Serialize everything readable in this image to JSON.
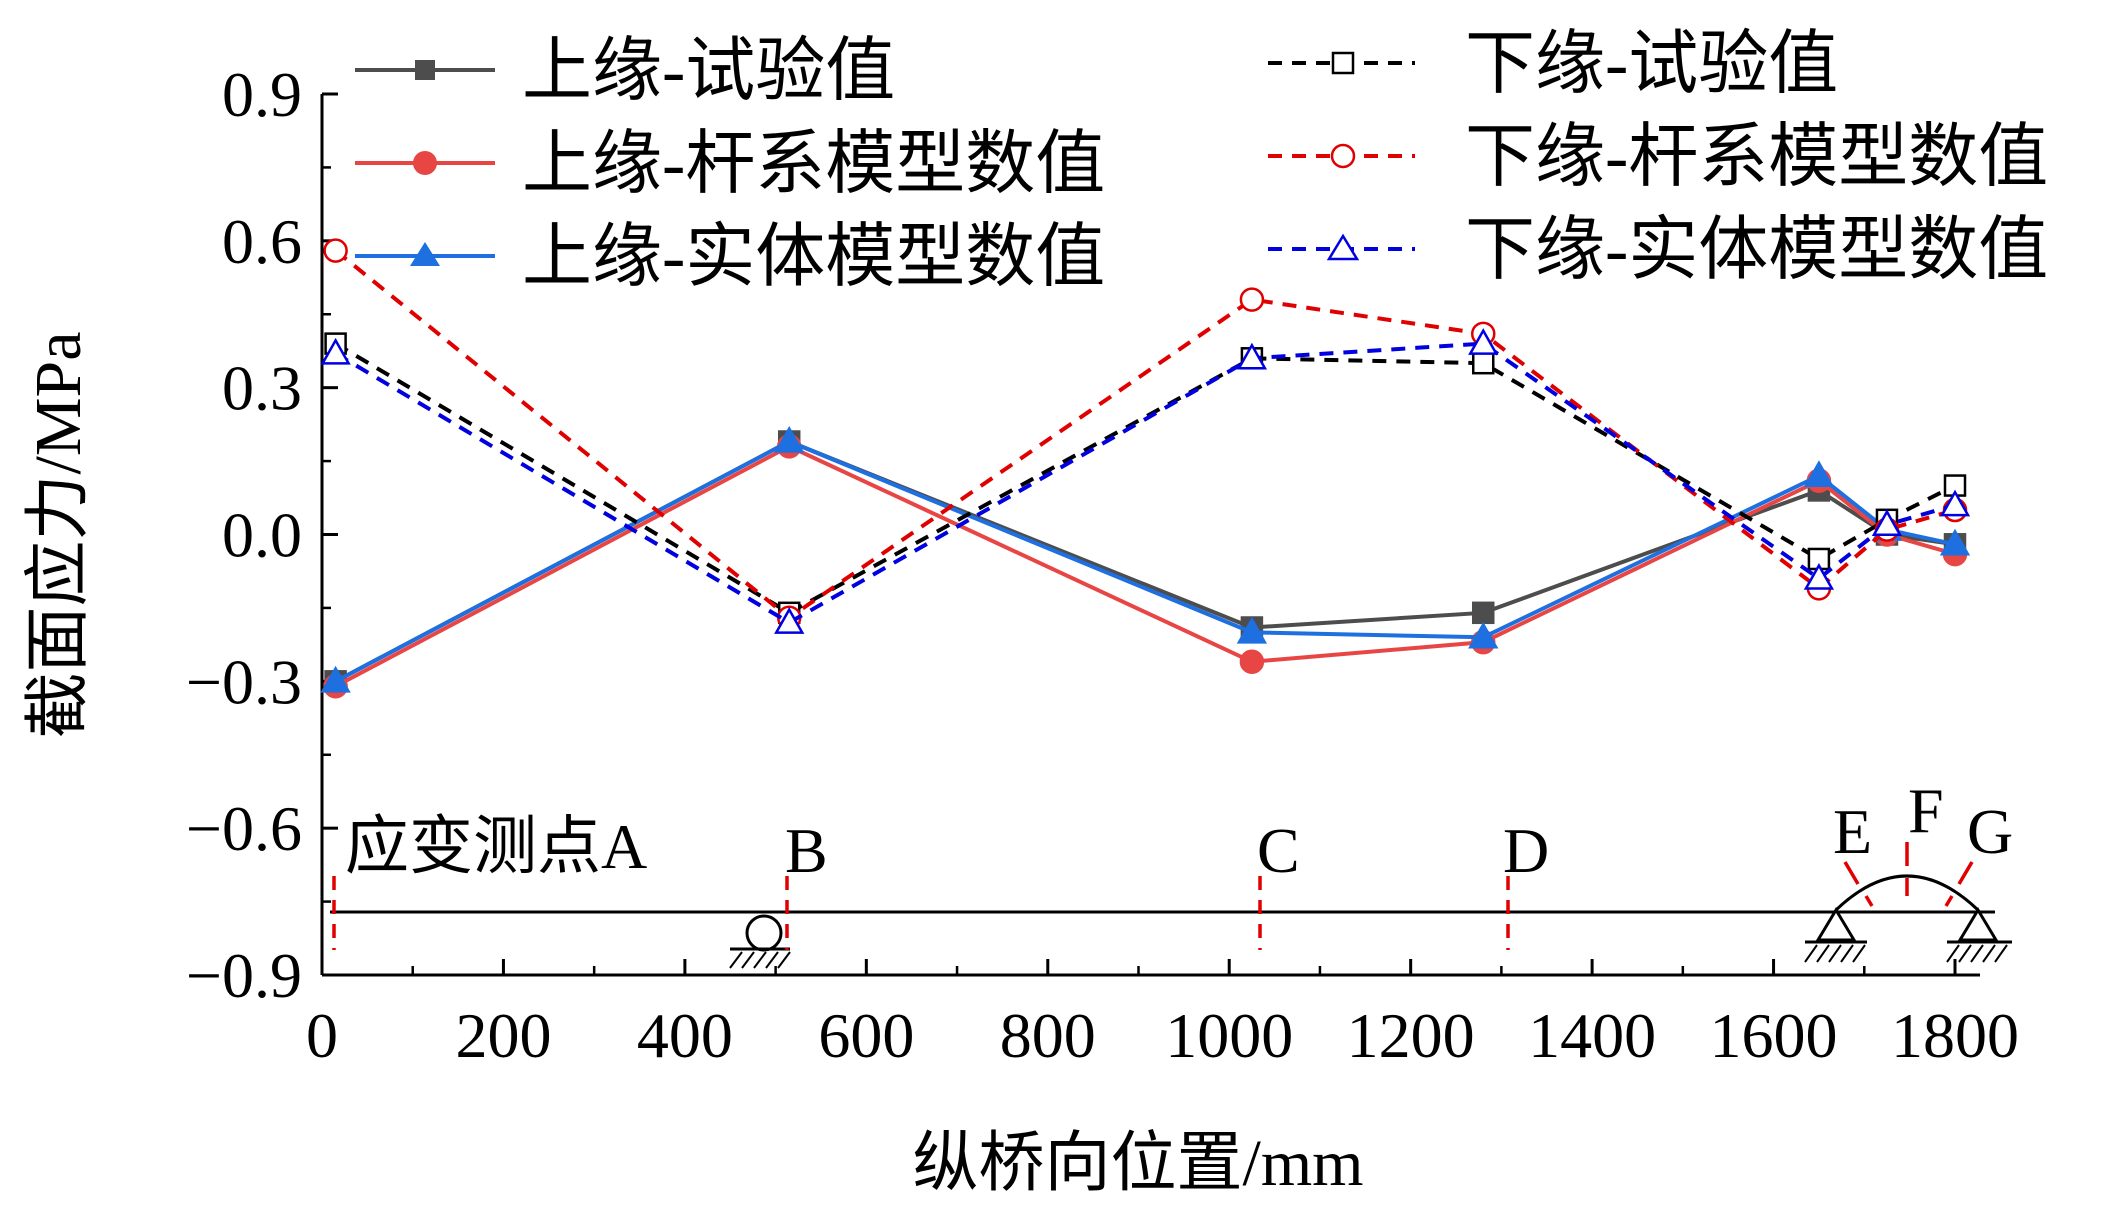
{
  "chart_data": {
    "type": "line",
    "xlabel": "纵桥向位置/mm",
    "ylabel": "截面应力/MPa",
    "xlim": [
      0,
      1800
    ],
    "ylim": [
      -0.9,
      0.9
    ],
    "x_ticks": [
      "0",
      "200",
      "400",
      "600",
      "800",
      "1000",
      "1200",
      "1400",
      "1600",
      "1800"
    ],
    "y_ticks": [
      "0.9",
      "0.6",
      "0.3",
      "0.0",
      "−0.3",
      "−0.6",
      "−0.9"
    ],
    "grid": false,
    "legend_position": "top",
    "colors": {
      "test": "#4d4d4d",
      "frame": "#e84545",
      "solid": "#1e6fe0",
      "test_dashed": "#000000",
      "frame_dashed": "#e00000",
      "solid_dashed": "#0000e0",
      "marker_line": "#e00000"
    },
    "series": [
      {
        "name": "上缘-试验值",
        "key": "top_test",
        "style": "solid",
        "marker": "square",
        "filled": true,
        "color": "#4d4d4d",
        "x": [
          15,
          515,
          1025,
          1280,
          1650,
          1725,
          1800
        ],
        "y": [
          -0.3,
          0.19,
          -0.19,
          -0.16,
          0.09,
          0.0,
          -0.02
        ]
      },
      {
        "name": "上缘-杆系模型数值",
        "key": "top_frame",
        "style": "solid",
        "marker": "circle",
        "filled": true,
        "color": "#e84545",
        "x": [
          15,
          515,
          1025,
          1280,
          1650,
          1725,
          1800
        ],
        "y": [
          -0.31,
          0.18,
          -0.26,
          -0.22,
          0.11,
          0.0,
          -0.04
        ]
      },
      {
        "name": "上缘-实体模型数值",
        "key": "top_solid",
        "style": "solid",
        "marker": "triangle",
        "filled": true,
        "color": "#1e6fe0",
        "x": [
          15,
          515,
          1025,
          1280,
          1650,
          1725,
          1800
        ],
        "y": [
          -0.3,
          0.19,
          -0.2,
          -0.21,
          0.12,
          0.01,
          -0.02
        ]
      },
      {
        "name": "下缘-试验值",
        "key": "bot_test",
        "style": "dashed",
        "marker": "square",
        "filled": false,
        "color": "#000000",
        "x": [
          15,
          515,
          1025,
          1280,
          1650,
          1725,
          1800
        ],
        "y": [
          0.39,
          -0.16,
          0.36,
          0.35,
          -0.05,
          0.03,
          0.1
        ]
      },
      {
        "name": "下缘-杆系模型数值",
        "key": "bot_frame",
        "style": "dashed",
        "marker": "circle",
        "filled": false,
        "color": "#e00000",
        "x": [
          15,
          515,
          1025,
          1280,
          1650,
          1725,
          1800
        ],
        "y": [
          0.58,
          -0.17,
          0.48,
          0.41,
          -0.11,
          0.01,
          0.05
        ]
      },
      {
        "name": "下缘-实体模型数值",
        "key": "bot_solid",
        "style": "dashed",
        "marker": "triangle",
        "filled": false,
        "color": "#0000e0",
        "x": [
          15,
          515,
          1025,
          1280,
          1650,
          1725,
          1800
        ],
        "y": [
          0.37,
          -0.18,
          0.36,
          0.39,
          -0.09,
          0.02,
          0.06
        ]
      }
    ],
    "annotations": {
      "label_points": [
        "应变测点A",
        "B",
        "C",
        "D",
        "E",
        "F",
        "G"
      ]
    }
  }
}
